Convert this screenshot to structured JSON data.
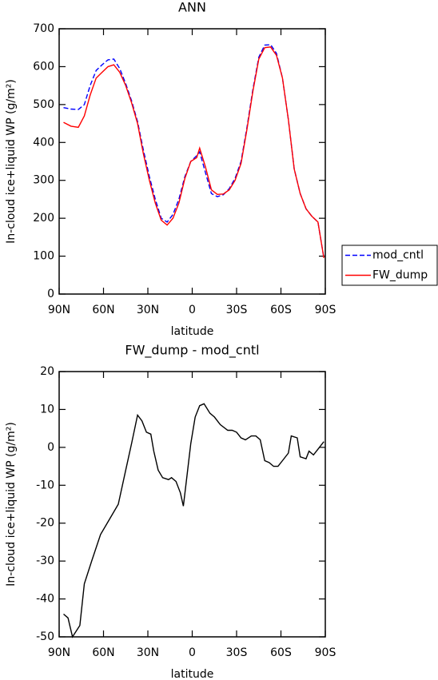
{
  "chart_data": [
    {
      "type": "line",
      "title": "ANN",
      "x_label": "latitude",
      "y_label": "In-cloud ice+liquid WP (g/m²)",
      "x": [
        87,
        82,
        77,
        73,
        69,
        65,
        61,
        57,
        53,
        49,
        45,
        41,
        37,
        33,
        29,
        25,
        21,
        17,
        13,
        9,
        5,
        1,
        -3,
        -5,
        -9,
        -13,
        -17,
        -21,
        -25,
        -29,
        -33,
        -37,
        -41,
        -45,
        -49,
        -53,
        -57,
        -61,
        -65,
        -69,
        -73,
        -77,
        -81,
        -85,
        -89
      ],
      "series": [
        {
          "name": "mod_cntl",
          "color": "#0000ff",
          "dash": true,
          "values": [
            492,
            488,
            487,
            500,
            550,
            590,
            605,
            618,
            620,
            595,
            555,
            510,
            455,
            380,
            310,
            250,
            200,
            190,
            210,
            250,
            310,
            350,
            365,
            375,
            320,
            265,
            257,
            262,
            278,
            305,
            350,
            440,
            540,
            625,
            657,
            658,
            635,
            570,
            460,
            330,
            265,
            225,
            205,
            190,
            95
          ]
        },
        {
          "name": "FW_dump",
          "color": "#ff0000",
          "dash": false,
          "values": [
            453,
            443,
            440,
            470,
            525,
            570,
            585,
            600,
            605,
            585,
            550,
            505,
            450,
            370,
            300,
            240,
            195,
            182,
            200,
            240,
            305,
            350,
            360,
            385,
            335,
            275,
            263,
            264,
            275,
            300,
            345,
            435,
            535,
            620,
            650,
            652,
            630,
            570,
            460,
            330,
            265,
            225,
            205,
            190,
            95
          ]
        }
      ],
      "xlim": [
        90,
        -90
      ],
      "xticks": [
        {
          "value": 90,
          "label": "90N"
        },
        {
          "value": 60,
          "label": "60N"
        },
        {
          "value": 30,
          "label": "30N"
        },
        0,
        {
          "value": -30,
          "label": "30S"
        },
        {
          "value": -60,
          "label": "60S"
        },
        {
          "value": -90,
          "label": "90S"
        }
      ],
      "ylim": [
        0,
        700
      ],
      "yticks": [
        0,
        100,
        200,
        300,
        400,
        500,
        600,
        700
      ],
      "legend": "outside-right"
    },
    {
      "type": "line",
      "title": "FW_dump - mod_cntl",
      "x_label": "latitude",
      "y_label": "In-cloud ice+liquid WP (g/m²)",
      "x": [
        87,
        84,
        81,
        76,
        73,
        68,
        62,
        56,
        50,
        45,
        41,
        37,
        34,
        31,
        28,
        26,
        23,
        20,
        16,
        14,
        11,
        8,
        6,
        4,
        1,
        -2,
        -5,
        -8,
        -12,
        -15,
        -19,
        -24,
        -27,
        -30,
        -33,
        -36,
        -40,
        -43,
        -46,
        -49,
        -52,
        -55,
        -58,
        -61,
        -65,
        -67,
        -71,
        -73,
        -77,
        -79,
        -82,
        -85,
        -89
      ],
      "series": [
        {
          "name": "FW_dump - mod_cntl",
          "color": "#000000",
          "dash": false,
          "values": [
            -44,
            -45,
            -50,
            -47,
            -36,
            -30,
            -23,
            -19,
            -15,
            -6,
            1,
            8.5,
            7,
            4,
            3.5,
            -1,
            -6,
            -8,
            -8.5,
            -8,
            -9,
            -12,
            -15.5,
            -9,
            1,
            8,
            11,
            11.5,
            9,
            8,
            6,
            4.5,
            4.5,
            4,
            2.5,
            2,
            3,
            3,
            2,
            -3.5,
            -4,
            -5,
            -5,
            -3.5,
            -1.5,
            3,
            2.5,
            -2.5,
            -3,
            -1,
            -2,
            -0.5,
            1.5
          ]
        }
      ],
      "xlim": [
        90,
        -90
      ],
      "xticks": [
        {
          "value": 90,
          "label": "90N"
        },
        {
          "value": 60,
          "label": "60N"
        },
        {
          "value": 30,
          "label": "30N"
        },
        0,
        {
          "value": -30,
          "label": "30S"
        },
        {
          "value": -60,
          "label": "60S"
        },
        {
          "value": -90,
          "label": "90S"
        }
      ],
      "ylim": [
        -50,
        20
      ],
      "yticks": [
        -50,
        -40,
        -30,
        -20,
        -10,
        0,
        10,
        20
      ]
    }
  ]
}
